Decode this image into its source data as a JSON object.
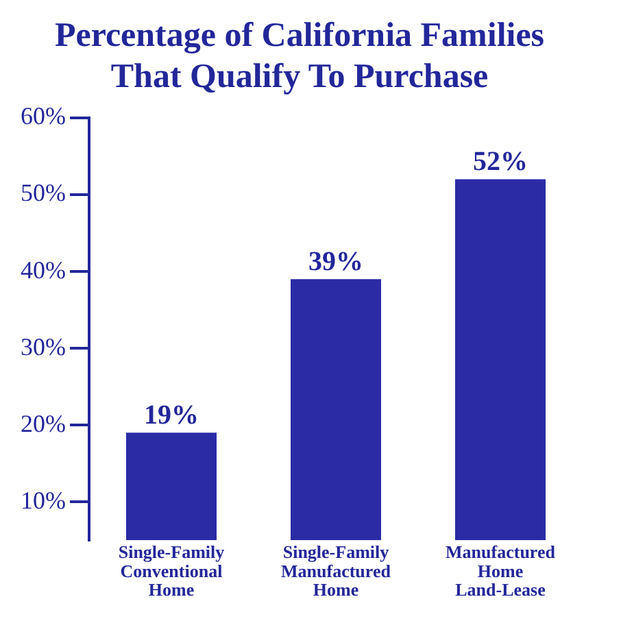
{
  "chart_data": {
    "type": "bar",
    "title": "Percentage of California Families That Qualify To Purchase",
    "categories": [
      "Single-Family Conventional Home",
      "Single-Family Manufactured Home",
      "Manufactured Home Land-Lease"
    ],
    "values": [
      19,
      39,
      52
    ],
    "color": "#2b2ba6",
    "value_labels": [
      "19%",
      "39%",
      "52%"
    ],
    "ylim": [
      5,
      60
    ],
    "yticks": [
      {
        "value": 10,
        "label": "10%"
      },
      {
        "value": 20,
        "label": "20%"
      },
      {
        "value": 30,
        "label": "30%"
      },
      {
        "value": 40,
        "label": "40%"
      },
      {
        "value": 50,
        "label": "50%"
      },
      {
        "value": 60,
        "label": "60%"
      }
    ],
    "grid": false,
    "legend": false
  }
}
